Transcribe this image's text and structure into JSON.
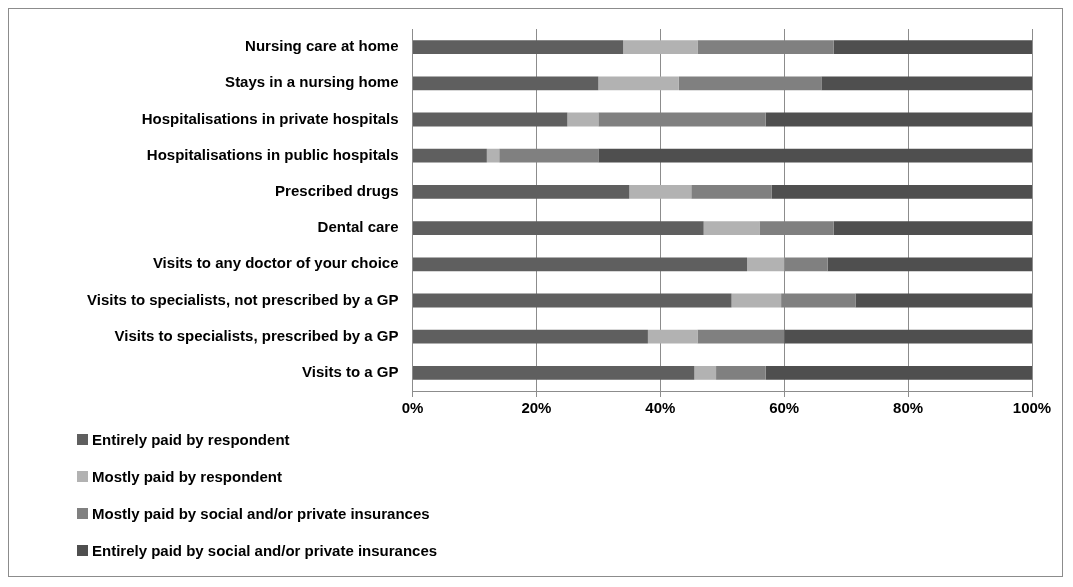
{
  "chart_data": {
    "type": "bar",
    "orientation": "horizontal",
    "stacked": true,
    "categories": [
      "Nursing care at home",
      "Stays in a nursing home",
      "Hospitalisations in private hospitals",
      "Hospitalisations in public hospitals",
      "Prescribed drugs",
      "Dental care",
      "Visits to any doctor of your choice",
      "Visits to specialists, not prescribed by a GP",
      "Visits to specialists, prescribed by a GP",
      "Visits to a GP"
    ],
    "series": [
      {
        "name": "Entirely paid by respondent",
        "color": "#5f5f5f",
        "values": [
          34,
          30,
          25,
          12,
          35,
          47,
          54,
          51.5,
          38,
          45.5
        ]
      },
      {
        "name": "Mostly paid by respondent",
        "color": "#b2b2b2",
        "values": [
          12,
          13,
          5,
          2,
          10,
          9,
          6,
          8,
          8,
          3.5
        ]
      },
      {
        "name": "Mostly paid by social and/or private insurances",
        "color": "#808080",
        "values": [
          22,
          23,
          27,
          16,
          13,
          12,
          7,
          12,
          14,
          8
        ]
      },
      {
        "name": "Entirely paid by social and/or private insurances",
        "color": "#4f4f4f",
        "values": [
          32,
          34,
          43,
          70,
          42,
          32,
          33,
          28.5,
          40,
          43
        ]
      }
    ],
    "xlim": [
      0,
      100
    ],
    "xticks": [
      {
        "value": 0,
        "label": "0%"
      },
      {
        "value": 20,
        "label": "20%"
      },
      {
        "value": 40,
        "label": "40%"
      },
      {
        "value": 60,
        "label": "60%"
      },
      {
        "value": 80,
        "label": "80%"
      },
      {
        "value": 100,
        "label": "100%"
      }
    ],
    "grid": "x",
    "legend": "bottom"
  }
}
